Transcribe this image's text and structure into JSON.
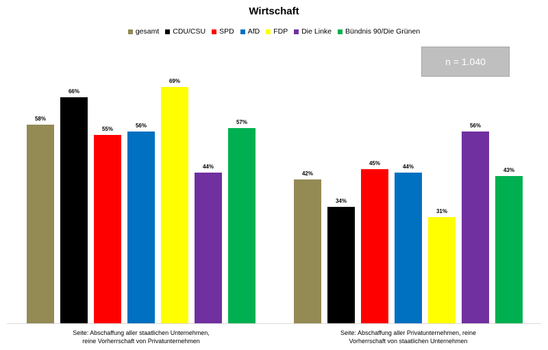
{
  "chart_data": {
    "type": "bar",
    "title": "Wirtschaft",
    "annotation": "n = 1.040",
    "legend_position": "top",
    "grid": false,
    "ylim": [
      0,
      100
    ],
    "value_suffix": "%",
    "categories": [
      [
        "Seite: Abschaffung aller staatlichen Unternehmen,",
        "reine Vorherrschaft von Privatunternehmen"
      ],
      [
        "Seite: Abschaffung aller Privatunternehmen, reine",
        "Vorherrschaft von staatlichen Unternehmen"
      ]
    ],
    "series": [
      {
        "name": "gesamt",
        "color": "#948a54",
        "values": [
          58,
          42
        ]
      },
      {
        "name": "CDU/CSU",
        "color": "#000000",
        "values": [
          66,
          34
        ]
      },
      {
        "name": "SPD",
        "color": "#ff0000",
        "values": [
          55,
          45
        ]
      },
      {
        "name": "AfD",
        "color": "#0070c0",
        "values": [
          56,
          44
        ]
      },
      {
        "name": "FDP",
        "color": "#ffff00",
        "values": [
          69,
          31
        ]
      },
      {
        "name": "Die Linke",
        "color": "#7030a0",
        "values": [
          44,
          56
        ]
      },
      {
        "name": "Bündnis 90/Die Grünen",
        "color": "#00b050",
        "values": [
          57,
          43
        ]
      }
    ]
  }
}
